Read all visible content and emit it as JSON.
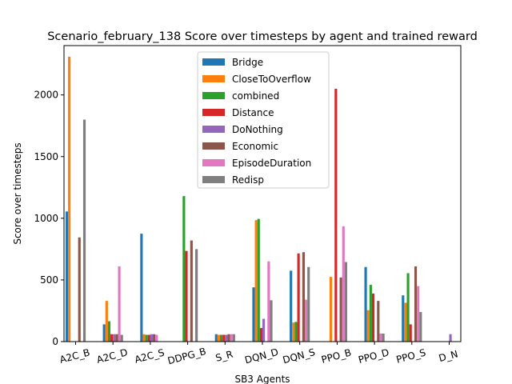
{
  "chart_data": {
    "type": "bar",
    "title": "Scenario_february_138 Score over timesteps by agent and trained reward",
    "xlabel": "SB3 Agents",
    "ylabel": "Score over timesteps",
    "ylim": [
      0,
      2400
    ],
    "yticks": [
      0,
      500,
      1000,
      1500,
      2000
    ],
    "grid": false,
    "legend_position": "top-center",
    "categories": [
      "A2C_B",
      "A2C_D",
      "A2C_S",
      "DDPG_B",
      "S_R",
      "DQN_D",
      "DQN_S",
      "PPO_B",
      "PPO_D",
      "PPO_S",
      "D_N"
    ],
    "series": [
      {
        "name": "Bridge",
        "color": "#1f77b4",
        "values": [
          1055,
          140,
          875,
          0,
          60,
          440,
          575,
          0,
          605,
          375,
          0
        ]
      },
      {
        "name": "CloseToOverflow",
        "color": "#ff7f0e",
        "values": [
          2310,
          330,
          60,
          0,
          55,
          985,
          155,
          525,
          255,
          315,
          0
        ]
      },
      {
        "name": "combined",
        "color": "#2ca02c",
        "values": [
          0,
          165,
          55,
          1180,
          55,
          995,
          160,
          0,
          460,
          555,
          0
        ]
      },
      {
        "name": "Distance",
        "color": "#d62728",
        "values": [
          0,
          60,
          55,
          735,
          55,
          110,
          715,
          2050,
          390,
          140,
          0
        ]
      },
      {
        "name": "DoNothing",
        "color": "#9467bd",
        "values": [
          0,
          60,
          60,
          0,
          55,
          185,
          0,
          0,
          0,
          0,
          60
        ]
      },
      {
        "name": "Economic",
        "color": "#8c564b",
        "values": [
          845,
          60,
          60,
          820,
          60,
          0,
          725,
          520,
          330,
          610,
          0
        ]
      },
      {
        "name": "EpisodeDuration",
        "color": "#e377c2",
        "values": [
          0,
          610,
          55,
          0,
          60,
          650,
          340,
          935,
          65,
          450,
          0
        ]
      },
      {
        "name": "Redisp",
        "color": "#7f7f7f",
        "values": [
          1800,
          55,
          0,
          750,
          60,
          335,
          605,
          645,
          65,
          240,
          0
        ]
      }
    ]
  }
}
